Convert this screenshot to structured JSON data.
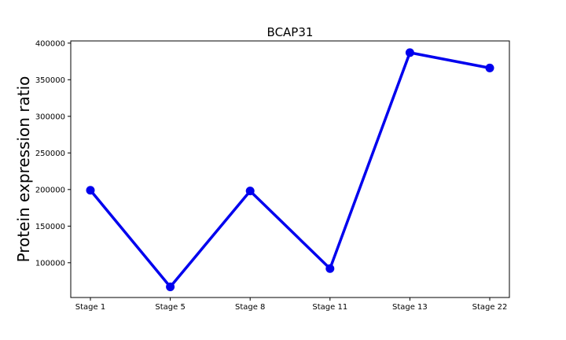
{
  "chart_data": {
    "type": "line",
    "title": "BCAP31",
    "xlabel": "",
    "ylabel": "Protein expression ratio",
    "categories": [
      "Stage 1",
      "Stage 5",
      "Stage 8",
      "Stage 11",
      "Stage 13",
      "Stage 22"
    ],
    "series": [
      {
        "values": [
          199000,
          67000,
          198000,
          92000,
          387000,
          366000
        ],
        "color": "#0000ee"
      }
    ],
    "yticks": [
      100000,
      150000,
      200000,
      250000,
      300000,
      350000,
      400000
    ],
    "ytick_labels": [
      "100000",
      "150000",
      "200000",
      "250000",
      "300000",
      "350000",
      "400000"
    ],
    "ylim": [
      52500,
      403000
    ],
    "grid": false,
    "legend": "none"
  }
}
